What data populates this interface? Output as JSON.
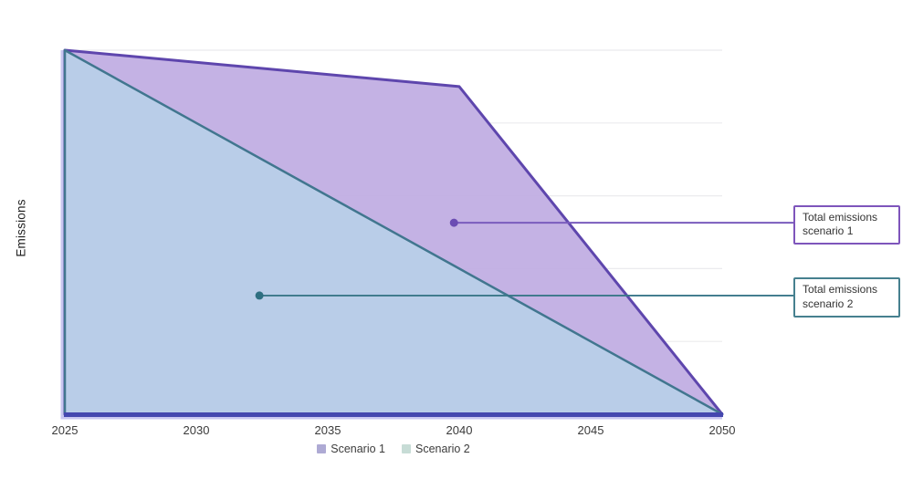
{
  "chart": {
    "y_axis_label": "Emissions",
    "x_ticks": [
      "2025",
      "2030",
      "2035",
      "2040",
      "2045",
      "2050"
    ],
    "gridline_values": [
      20,
      40,
      60,
      80,
      100
    ],
    "colors": {
      "gridline": "#ebebee",
      "baseline": "#4547af",
      "axis_glow": "#c9c6f0",
      "text": "#333333"
    },
    "legend": {
      "items": [
        {
          "label": "Scenario 1",
          "swatch": "#aeaad4"
        },
        {
          "label": "Scenario 2",
          "swatch": "#c7dcd6"
        }
      ]
    },
    "annotation_boxes": [
      {
        "text": "Total emissions scenario 1",
        "border_color": "#7e55bb"
      },
      {
        "text": "Total emissions scenario 2",
        "border_color": "#46808f"
      }
    ]
  },
  "chart_data": {
    "type": "area",
    "title": "",
    "xlabel": "",
    "ylabel": "Emissions",
    "xlim": [
      2025,
      2050
    ],
    "ylim": [
      0,
      100
    ],
    "grid": true,
    "legend_position": "bottom-center",
    "x_ticks": [
      2025,
      2030,
      2035,
      2040,
      2045,
      2050
    ],
    "series": [
      {
        "name": "Scenario 1",
        "x": [
          2025,
          2040,
          2050
        ],
        "values": [
          100,
          90,
          0
        ],
        "line_color": "#5e46ad",
        "fill_color": "#c0ace2"
      },
      {
        "name": "Scenario 2",
        "x": [
          2025,
          2030,
          2035,
          2040,
          2045,
          2050
        ],
        "values": [
          100,
          80,
          60,
          40,
          20,
          0
        ],
        "line_color": "#41768f",
        "fill_color": "#b8cfe8"
      }
    ],
    "annotations": [
      {
        "text": "Total emissions scenario 1",
        "x": 2039.8,
        "y": 52.6,
        "color": "#7a5cbd",
        "dot_color": "#6b4cb3"
      },
      {
        "text": "Total emissions scenario 2",
        "x": 2032.4,
        "y": 32.6,
        "color": "#3a7789",
        "dot_color": "#2e6f81"
      }
    ]
  }
}
